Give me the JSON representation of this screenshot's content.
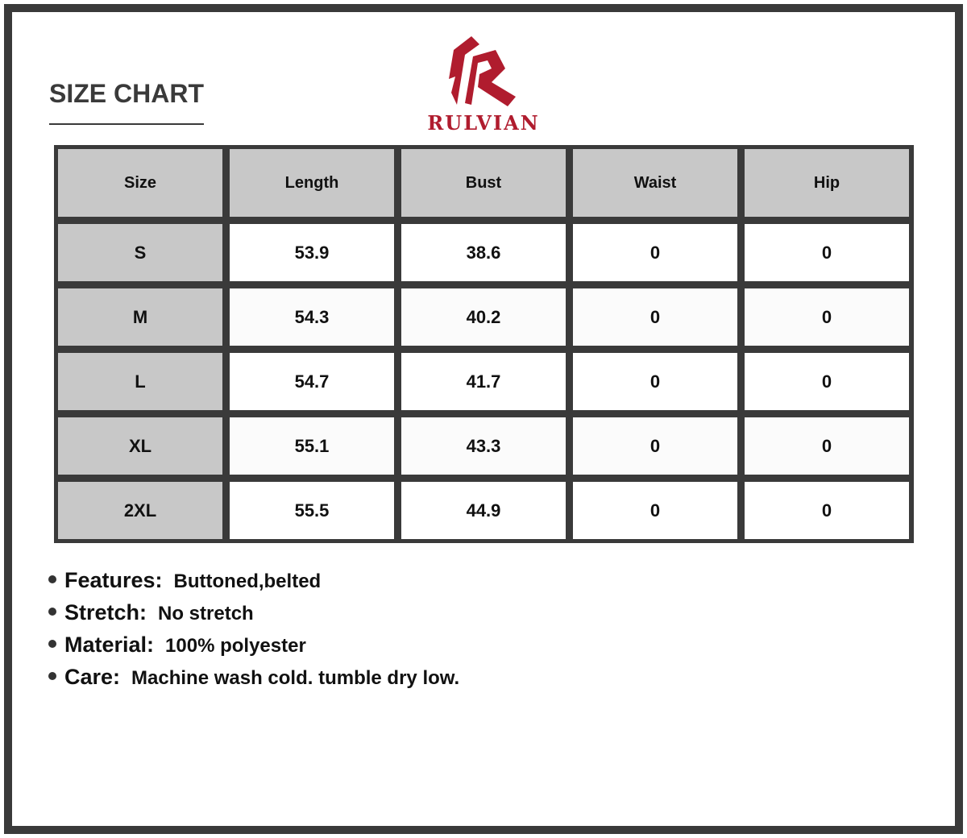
{
  "header": {
    "title": "SIZE CHART",
    "brand": "RULVIAN",
    "brand_color": "#b01c2e"
  },
  "table": {
    "columns": [
      "Size",
      "Length",
      "Bust",
      "Waist",
      "Hip"
    ],
    "rows": [
      [
        "S",
        "53.9",
        "38.6",
        "0",
        "0"
      ],
      [
        "M",
        "54.3",
        "40.2",
        "0",
        "0"
      ],
      [
        "L",
        "54.7",
        "41.7",
        "0",
        "0"
      ],
      [
        "XL",
        "55.1",
        "43.3",
        "0",
        "0"
      ],
      [
        "2XL",
        "55.5",
        "44.9",
        "0",
        "0"
      ]
    ]
  },
  "notes": [
    {
      "label": "Features:",
      "value": "Buttoned,belted"
    },
    {
      "label": "Stretch:",
      "value": "No stretch"
    },
    {
      "label": "Material:",
      "value": "100% polyester"
    },
    {
      "label": "Care:",
      "value": "Machine wash cold. tumble dry low."
    }
  ]
}
